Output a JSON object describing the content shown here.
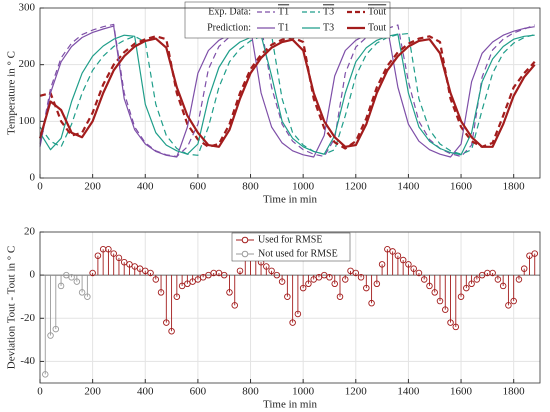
{
  "chart_data": [
    {
      "type": "line",
      "ylabel": "Temperature in ° C",
      "xlabel": "Time in min",
      "xlim": [
        0,
        1900
      ],
      "xticks": [
        0,
        200,
        400,
        600,
        800,
        1000,
        1200,
        1400,
        1600,
        1800
      ],
      "ylim": [
        0,
        300
      ],
      "yticks": [
        0,
        100,
        200,
        300
      ],
      "grid": true,
      "legend_groups": [
        "Exp. Data:",
        "Prediction:"
      ],
      "x": [
        0,
        40,
        80,
        120,
        160,
        200,
        240,
        280,
        320,
        360,
        400,
        440,
        480,
        520,
        560,
        600,
        640,
        680,
        720,
        760,
        800,
        840,
        880,
        920,
        960,
        1000,
        1040,
        1080,
        1120,
        1160,
        1200,
        1240,
        1280,
        1320,
        1360,
        1400,
        1440,
        1480,
        1520,
        1560,
        1600,
        1640,
        1680,
        1720,
        1760,
        1800,
        1840,
        1880
      ],
      "series": [
        {
          "name": "T1",
          "group": 0,
          "dash": true,
          "color": "#7e4fa8",
          "width": 1.2,
          "values": [
            60,
            158,
            212,
            238,
            253,
            261,
            267,
            271,
            150,
            90,
            62,
            48,
            41,
            38,
            55,
            95,
            192,
            232,
            249,
            258,
            264,
            269,
            160,
            95,
            65,
            50,
            42,
            38,
            70,
            185,
            231,
            248,
            257,
            264,
            270,
            170,
            100,
            68,
            52,
            43,
            38,
            58,
            178,
            226,
            245,
            256,
            263,
            270
          ]
        },
        {
          "name": "T3",
          "group": 0,
          "dash": true,
          "color": "#1f9e8a",
          "width": 1.2,
          "values": [
            90,
            65,
            55,
            95,
            150,
            190,
            215,
            232,
            243,
            250,
            240,
            130,
            75,
            52,
            42,
            40,
            90,
            160,
            205,
            228,
            242,
            250,
            252,
            140,
            80,
            58,
            47,
            42,
            50,
            110,
            180,
            218,
            238,
            248,
            253,
            255,
            140,
            85,
            60,
            48,
            42,
            50,
            120,
            185,
            220,
            238,
            248,
            253
          ]
        },
        {
          "name": "Tout",
          "group": 0,
          "dash": true,
          "color": "#a31c1c",
          "width": 2.2,
          "values": [
            145,
            150,
            100,
            75,
            80,
            115,
            165,
            200,
            222,
            237,
            245,
            250,
            245,
            150,
            95,
            68,
            55,
            60,
            95,
            150,
            192,
            218,
            235,
            244,
            248,
            240,
            140,
            88,
            63,
            52,
            65,
            105,
            160,
            198,
            222,
            237,
            246,
            250,
            240,
            140,
            90,
            65,
            55,
            62,
            110,
            160,
            185,
            205
          ]
        },
        {
          "name": "T1",
          "group": 1,
          "dash": false,
          "color": "#7e4fa8",
          "width": 1.2,
          "values": [
            55,
            150,
            205,
            232,
            248,
            257,
            263,
            268,
            140,
            85,
            60,
            47,
            40,
            37,
            90,
            185,
            225,
            243,
            253,
            260,
            265,
            150,
            90,
            62,
            48,
            41,
            37,
            75,
            180,
            225,
            243,
            253,
            260,
            266,
            160,
            95,
            65,
            50,
            42,
            37,
            60,
            170,
            220,
            240,
            252,
            259,
            264,
            267
          ]
        },
        {
          "name": "T3",
          "group": 1,
          "dash": false,
          "color": "#1f9e8a",
          "width": 1.2,
          "values": [
            80,
            50,
            70,
            135,
            185,
            215,
            233,
            245,
            252,
            250,
            130,
            80,
            58,
            48,
            42,
            60,
            140,
            195,
            225,
            240,
            248,
            252,
            180,
            100,
            70,
            55,
            47,
            42,
            75,
            150,
            205,
            230,
            243,
            250,
            254,
            150,
            90,
            65,
            52,
            45,
            41,
            80,
            170,
            210,
            232,
            245,
            250,
            252
          ]
        },
        {
          "name": "Tout",
          "group": 1,
          "dash": false,
          "color": "#a31c1c",
          "width": 2.2,
          "values": [
            70,
            135,
            120,
            80,
            72,
            100,
            150,
            190,
            215,
            232,
            242,
            246,
            230,
            160,
            110,
            80,
            58,
            55,
            85,
            140,
            185,
            212,
            230,
            240,
            244,
            225,
            150,
            100,
            72,
            55,
            58,
            95,
            150,
            190,
            215,
            232,
            242,
            245,
            220,
            150,
            100,
            72,
            55,
            55,
            95,
            145,
            178,
            200
          ]
        }
      ]
    },
    {
      "type": "stem",
      "ylabel": "Deviation  Tout - Tout  in ° C",
      "xlabel": "Time in min",
      "xlim": [
        0,
        1900
      ],
      "xticks": [
        0,
        200,
        400,
        600,
        800,
        1000,
        1200,
        1400,
        1600,
        1800
      ],
      "ylim": [
        -50,
        20
      ],
      "yticks": [
        -40,
        -20,
        0,
        20
      ],
      "grid": true,
      "series": [
        {
          "name": "Used for RMSE",
          "color": "#a31c1c",
          "x": [
            200,
            220,
            240,
            260,
            280,
            300,
            320,
            340,
            360,
            380,
            400,
            420,
            440,
            460,
            480,
            500,
            520,
            540,
            560,
            580,
            600,
            620,
            640,
            660,
            680,
            700,
            720,
            740,
            760,
            780,
            800,
            820,
            840,
            860,
            880,
            900,
            920,
            940,
            960,
            980,
            1000,
            1020,
            1040,
            1060,
            1080,
            1100,
            1120,
            1140,
            1160,
            1180,
            1200,
            1220,
            1240,
            1260,
            1280,
            1300,
            1320,
            1340,
            1360,
            1380,
            1400,
            1420,
            1440,
            1460,
            1480,
            1500,
            1520,
            1540,
            1560,
            1580,
            1600,
            1620,
            1640,
            1660,
            1680,
            1700,
            1720,
            1740,
            1760,
            1780,
            1800,
            1820,
            1840,
            1860,
            1880
          ],
          "values": [
            1,
            9,
            12,
            12,
            10,
            8,
            6,
            5,
            4,
            3,
            2,
            1,
            -2,
            -8,
            -22,
            -26,
            -10,
            -5,
            -4,
            -3,
            -2,
            -1,
            0,
            1,
            1,
            0,
            -8,
            -14,
            2,
            11,
            10,
            8,
            6,
            4,
            2,
            0,
            -3,
            -10,
            -22,
            -18,
            -6,
            -4,
            -2,
            -1,
            0,
            -1,
            -4,
            -10,
            -2,
            2,
            1,
            -1,
            -6,
            -13,
            -4,
            5,
            12,
            11,
            9,
            7,
            5,
            3,
            1,
            -2,
            -5,
            -8,
            -12,
            -16,
            -22,
            -24,
            -10,
            -6,
            -4,
            -2,
            0,
            1,
            1,
            -2,
            -5,
            -14,
            -12,
            -2,
            3,
            9,
            10
          ]
        },
        {
          "name": "Not used for RMSE",
          "color": "#9a9a9a",
          "x": [
            20,
            40,
            60,
            80,
            100,
            120,
            140,
            160,
            180
          ],
          "values": [
            -46,
            -28,
            -25,
            -5,
            0,
            -1,
            -3,
            -8,
            -10
          ]
        }
      ]
    }
  ]
}
